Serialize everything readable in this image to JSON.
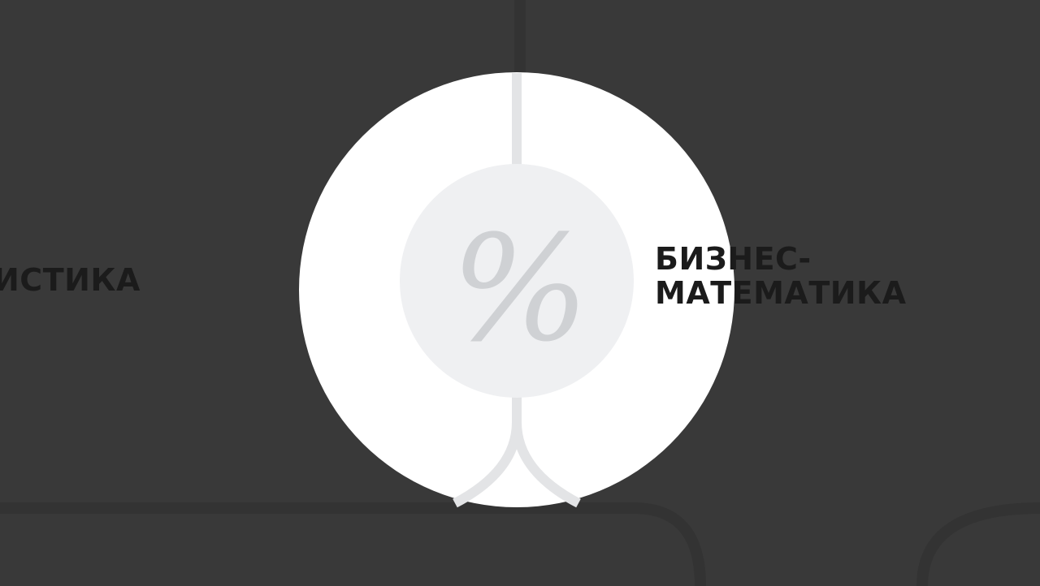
{
  "nodes": [
    {
      "id": "statistics",
      "label_visible": "ИСТИКА"
    },
    {
      "id": "business-math",
      "label_lines": [
        "БИЗНЕС-",
        "МАТЕМАТИКА"
      ],
      "icon": "percent-icon",
      "icon_glyph": "%"
    }
  ],
  "colors": {
    "background": "#393939",
    "connector_dark": "#333333",
    "node_outer": "#ffffff",
    "node_inner": "#eff0f2",
    "node_connector": "#e3e4e6",
    "icon_glyph": "#cfd1d4",
    "label_text": "#1b1b1b"
  }
}
